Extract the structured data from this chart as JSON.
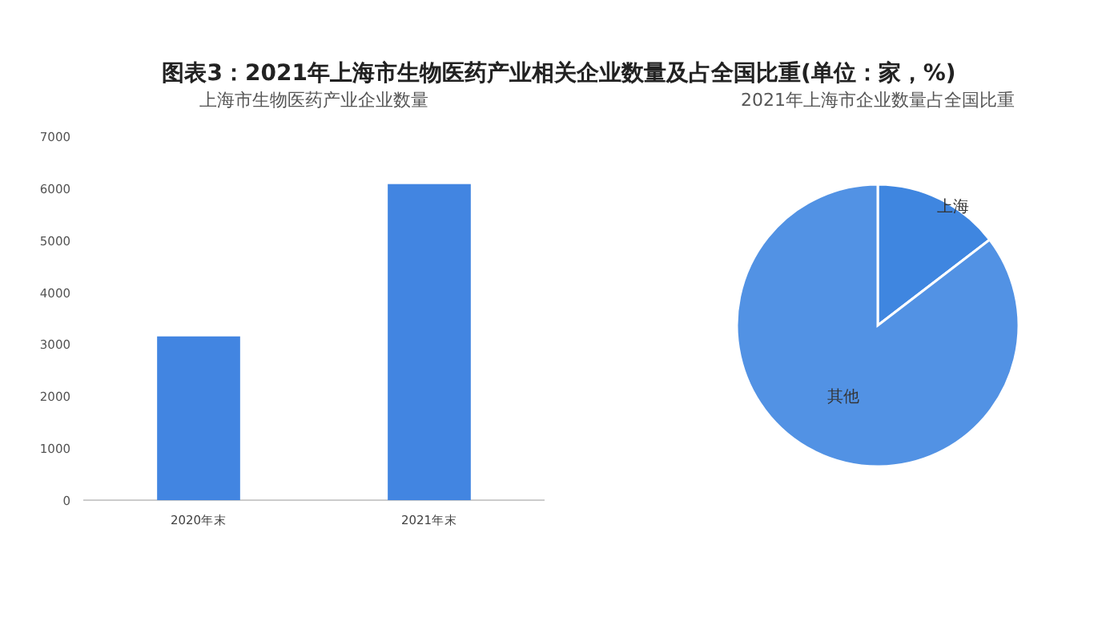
{
  "chart_data": [
    {
      "type": "bar",
      "title": "图表3：2021年上海市生物医药产业相关企业数量及占全国比重(单位：家，%)",
      "subtitle": "上海市生物医药产业企业数量",
      "categories": [
        "2020年末",
        "2021年末"
      ],
      "values": [
        3150,
        6080
      ],
      "color": "#4285e1",
      "ylim": [
        0,
        7000
      ],
      "yticks": [
        0,
        1000,
        2000,
        3000,
        4000,
        5000,
        6000,
        7000
      ],
      "grid": false
    },
    {
      "type": "pie",
      "subtitle": "2021年上海市企业数量占全国比重",
      "categories": [
        "上海",
        "其他"
      ],
      "values": [
        14.6,
        85.4
      ],
      "colors": [
        "#3f86e0",
        "#5292e4"
      ]
    }
  ]
}
